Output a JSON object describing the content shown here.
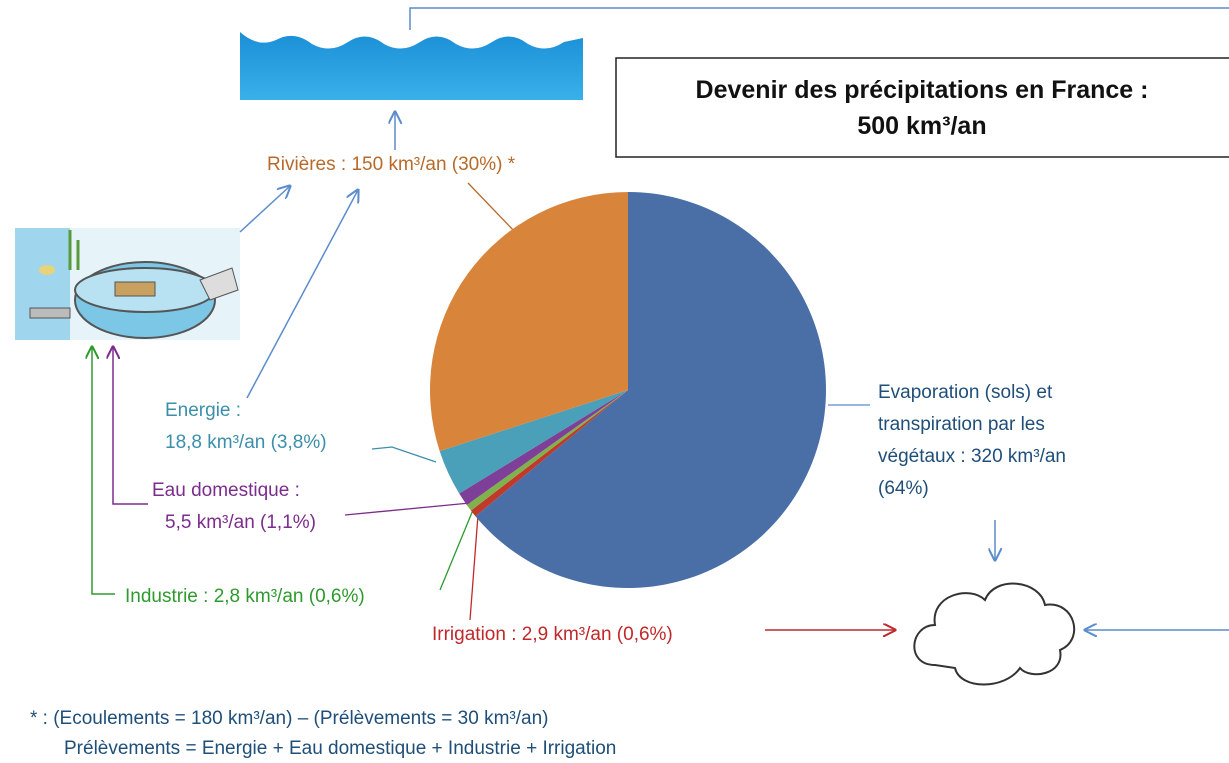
{
  "chart_data": {
    "type": "pie",
    "title": [
      "Devenir des précipitations en France :",
      "500 km³/an"
    ],
    "values": [
      320,
      2.9,
      2.8,
      5.5,
      18.8,
      150
    ],
    "colors": [
      "#4a6fa6",
      "#c0392b",
      "#7fb24a",
      "#7e3f98",
      "#4aa0b8",
      "#d9843b"
    ],
    "label_colors": [
      "#1f4e79",
      "#c0282a",
      "#2e9a2e",
      "#7b2d8b",
      "#3b8fab",
      "#b86a2a"
    ],
    "value_labels": [
      [
        "Evaporation (sols) et",
        "transpiration par les",
        "végétaux : 320 km³/an",
        "(64%)"
      ],
      [
        "Irrigation : 2,9 km³/an (0,6%)"
      ],
      [
        "Industrie : 2,8 km³/an (0,6%)"
      ],
      [
        "Eau domestique  :",
        "5,5 km³/an (1,1%)"
      ],
      [
        "Energie  :",
        "18,8 km³/an (3,8%)"
      ],
      [
        "Rivières : 150 km³/an (30%) *"
      ]
    ],
    "footnote": [
      "* : (Ecoulements = 180 km³/an) – (Prélèvements  = 30 km³/an)",
      "Prélèvements = Energie + Eau domestique + Industrie + Irrigation"
    ]
  }
}
